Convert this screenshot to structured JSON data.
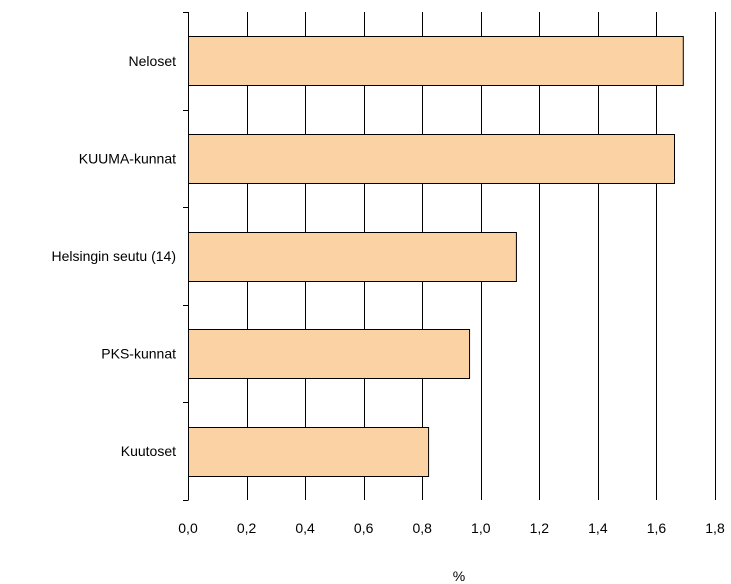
{
  "chart_data": {
    "type": "bar",
    "orientation": "horizontal",
    "categories": [
      "Neloset",
      "KUUMA-kunnat",
      "Helsingin seutu (14)",
      "PKS-kunnat",
      "Kuutoset"
    ],
    "values": [
      1.69,
      1.66,
      1.12,
      0.96,
      0.82
    ],
    "xlabel": "%",
    "ylabel": "",
    "xlim": [
      0,
      1.8
    ],
    "xticks": [
      0.0,
      0.2,
      0.4,
      0.6,
      0.8,
      1.0,
      1.2,
      1.4,
      1.6,
      1.8
    ],
    "xtick_labels": [
      "0,0",
      "0,2",
      "0,4",
      "0,6",
      "0,8",
      "1,0",
      "1,2",
      "1,4",
      "1,6",
      "1,8"
    ],
    "grid": "vertical",
    "legend": "none",
    "bar_color": "#FAD2A4",
    "bar_edge_color": "#000000"
  }
}
